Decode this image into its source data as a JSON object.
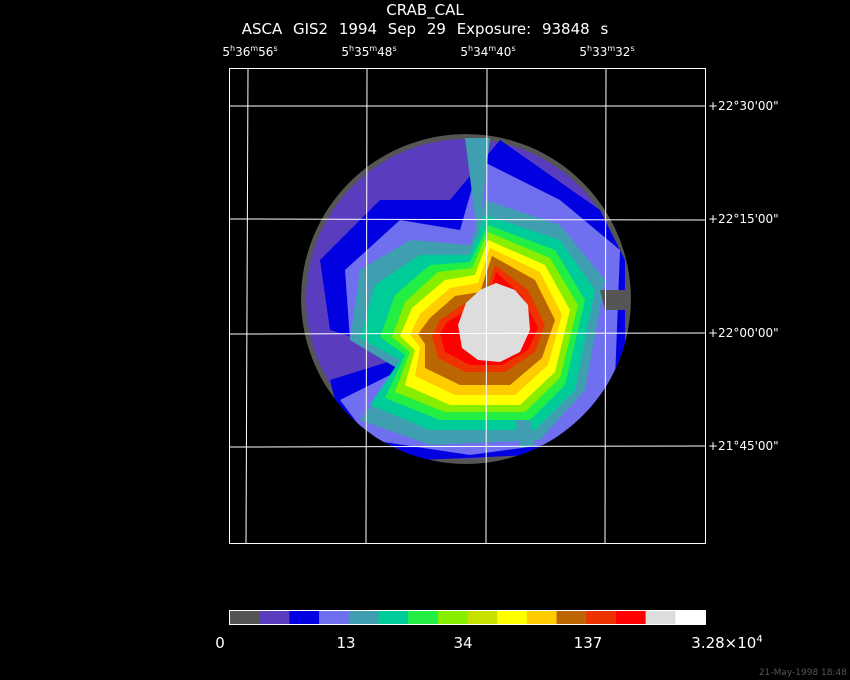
{
  "header": {
    "object": "CRAB_CAL",
    "subtitle": "ASCA GIS2   1994 Sep 29    Exposure: 93848 s"
  },
  "ra_axis": [
    {
      "h": "5",
      "m": "36",
      "s": "56"
    },
    {
      "h": "5",
      "m": "35",
      "s": "48"
    },
    {
      "h": "5",
      "m": "34",
      "s": "40"
    },
    {
      "h": "5",
      "m": "33",
      "s": "32"
    }
  ],
  "dec_axis": [
    "+22°30'00\"",
    "+22°15'00\"",
    "+22°00'00\"",
    "+21°45'00\""
  ],
  "colorbar": {
    "colors": [
      "#555555",
      "#5a3dbf",
      "#0000e0",
      "#6f6ff0",
      "#3f9fb0",
      "#00cc99",
      "#22ee44",
      "#88ee00",
      "#c8e000",
      "#ffff00",
      "#ffcc00",
      "#bb6600",
      "#ee3300",
      "#ff0000",
      "#dddddd",
      "#ffffff"
    ],
    "ticks": [
      {
        "label": "0"
      },
      {
        "label": "13"
      },
      {
        "label": "34"
      },
      {
        "label": "137"
      },
      {
        "label": "3.28×10",
        "exp": "4"
      }
    ]
  },
  "timestamp": "21-May-1998 18:48"
}
